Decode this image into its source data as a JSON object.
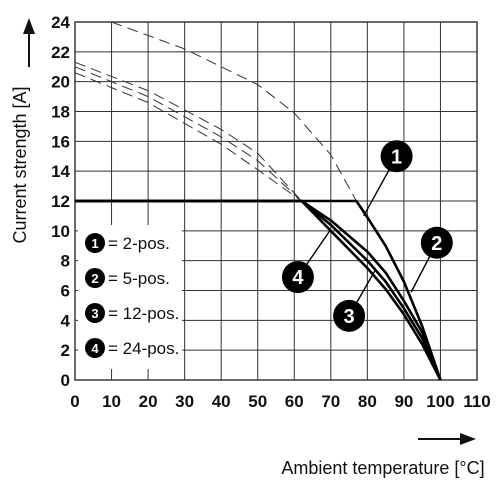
{
  "chart_data": {
    "type": "line",
    "xlabel": "Ambient temperature [°C]",
    "ylabel": "Current strength [A]",
    "xlim": [
      0,
      110
    ],
    "ylim": [
      0,
      24
    ],
    "x_ticks": [
      0,
      10,
      20,
      30,
      40,
      50,
      60,
      70,
      80,
      90,
      100,
      110
    ],
    "y_ticks": [
      0,
      2,
      4,
      6,
      8,
      10,
      12,
      14,
      16,
      18,
      20,
      22,
      24
    ],
    "grid": true,
    "legend_position": "bottom-left",
    "legend": [
      {
        "badge": "1",
        "label": "= 2-pos."
      },
      {
        "badge": "2",
        "label": "= 5-pos."
      },
      {
        "badge": "3",
        "label": "= 12-pos."
      },
      {
        "badge": "4",
        "label": "= 24-pos."
      }
    ],
    "series": [
      {
        "badge": "1",
        "points": [
          [
            0,
            12
          ],
          [
            77,
            12
          ],
          [
            80,
            10.9
          ],
          [
            85,
            9.0
          ],
          [
            90,
            6.6
          ],
          [
            95,
            3.6
          ],
          [
            100,
            0
          ]
        ],
        "dashed_points": [
          [
            10,
            24
          ],
          [
            30,
            22.2
          ],
          [
            50,
            19.8
          ],
          [
            60,
            17.9
          ],
          [
            70,
            15.1
          ],
          [
            77,
            12
          ]
        ]
      },
      {
        "badge": "2",
        "points": [
          [
            0,
            12
          ],
          [
            62,
            12
          ],
          [
            70,
            10.7
          ],
          [
            80,
            8.6
          ],
          [
            85,
            7.2
          ],
          [
            90,
            5.3
          ],
          [
            95,
            3.2
          ],
          [
            100,
            0
          ]
        ],
        "dashed_points": [
          [
            0,
            21.3
          ],
          [
            20,
            19.4
          ],
          [
            40,
            16.8
          ],
          [
            50,
            15.2
          ],
          [
            62,
            12
          ]
        ]
      },
      {
        "badge": "3",
        "points": [
          [
            0,
            12
          ],
          [
            62,
            12
          ],
          [
            70,
            10.4
          ],
          [
            80,
            8.0
          ],
          [
            85,
            6.6
          ],
          [
            90,
            4.8
          ],
          [
            95,
            2.8
          ],
          [
            100,
            0
          ]
        ],
        "dashed_points": [
          [
            0,
            21.0
          ],
          [
            20,
            19.0
          ],
          [
            40,
            16.3
          ],
          [
            50,
            14.7
          ],
          [
            62,
            12
          ]
        ]
      },
      {
        "badge": "4",
        "points": [
          [
            0,
            12
          ],
          [
            62,
            12
          ],
          [
            70,
            10.0
          ],
          [
            80,
            7.5
          ],
          [
            85,
            6.1
          ],
          [
            90,
            4.4
          ],
          [
            95,
            2.4
          ],
          [
            100,
            0
          ]
        ],
        "dashed_points": [
          [
            0,
            20.6
          ],
          [
            20,
            18.6
          ],
          [
            40,
            15.8
          ],
          [
            50,
            14.1
          ],
          [
            62,
            12
          ]
        ]
      }
    ],
    "annotations": [
      {
        "badge": "1",
        "at": [
          88,
          15.0
        ],
        "leader_to": [
          79,
          11.0
        ]
      },
      {
        "badge": "2",
        "at": [
          99,
          9.2
        ],
        "leader_to": [
          92,
          5.9
        ]
      },
      {
        "badge": "3",
        "at": [
          75,
          4.3
        ],
        "leader_to": [
          82,
          7.3
        ]
      },
      {
        "badge": "4",
        "at": [
          61,
          6.9
        ],
        "leader_to": [
          70,
          10.1
        ]
      }
    ]
  }
}
